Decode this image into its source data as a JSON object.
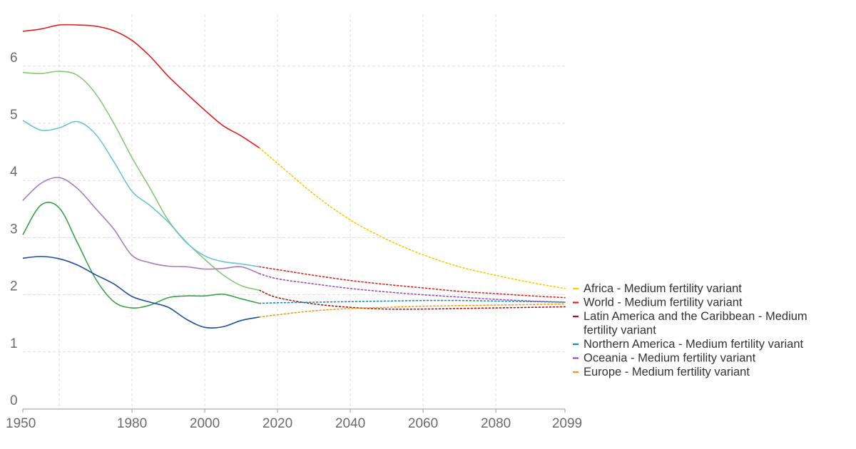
{
  "chart_data": {
    "type": "line",
    "title": "",
    "xlabel": "",
    "ylabel": "",
    "xlim": [
      1950,
      2099
    ],
    "ylim": [
      0,
      6.8
    ],
    "x_ticks": [
      1950,
      1980,
      2000,
      2020,
      2040,
      2060,
      2080,
      2099
    ],
    "x_tick_labels": [
      "1950",
      "1980",
      "2000",
      "2020",
      "2040",
      "2060",
      "2080",
      "2099"
    ],
    "y_ticks": [
      0,
      1,
      2,
      3,
      4,
      5,
      6
    ],
    "y_tick_labels": [
      "0",
      "1",
      "2",
      "3",
      "4",
      "5",
      "6"
    ],
    "grid": true,
    "legend_position": "right",
    "legend": [
      {
        "label": "Africa - Medium fertility variant",
        "color": "#ffc800"
      },
      {
        "label": "World - Medium fertility variant",
        "color": "#e02020"
      },
      {
        "label_lines": [
          "Latin America and the Caribbean - Medium",
          "fertility variant"
        ],
        "color": "#b01010"
      },
      {
        "label": "Northern America - Medium fertility variant",
        "color": "#1a8ab0"
      },
      {
        "label": "Oceania - Medium fertility variant",
        "color": "#9b4cb8"
      },
      {
        "label": "Europe - Medium fertility variant",
        "color": "#f39c12"
      }
    ],
    "series": [
      {
        "legend_index": 0,
        "historical_color": "#e02020",
        "projection_color": "#ffc800",
        "historical": [
          [
            1950,
            6.61
          ],
          [
            1955,
            6.65
          ],
          [
            1960,
            6.72
          ],
          [
            1965,
            6.72
          ],
          [
            1970,
            6.7
          ],
          [
            1975,
            6.62
          ],
          [
            1980,
            6.45
          ],
          [
            1985,
            6.17
          ],
          [
            1990,
            5.82
          ],
          [
            1995,
            5.52
          ],
          [
            2000,
            5.23
          ],
          [
            2005,
            4.96
          ],
          [
            2010,
            4.78
          ],
          [
            2015,
            4.57
          ]
        ],
        "projection": [
          [
            2015,
            4.57
          ],
          [
            2020,
            4.3
          ],
          [
            2030,
            3.76
          ],
          [
            2040,
            3.31
          ],
          [
            2050,
            2.97
          ],
          [
            2060,
            2.7
          ],
          [
            2070,
            2.49
          ],
          [
            2080,
            2.34
          ],
          [
            2090,
            2.21
          ],
          [
            2099,
            2.11
          ]
        ]
      },
      {
        "legend_index": 2,
        "historical_color": "#85c878",
        "projection_color": "#b01010",
        "historical": [
          [
            1950,
            5.89
          ],
          [
            1955,
            5.87
          ],
          [
            1960,
            5.91
          ],
          [
            1965,
            5.84
          ],
          [
            1970,
            5.52
          ],
          [
            1975,
            5.0
          ],
          [
            1980,
            4.4
          ],
          [
            1985,
            3.86
          ],
          [
            1990,
            3.3
          ],
          [
            1995,
            2.92
          ],
          [
            2000,
            2.62
          ],
          [
            2005,
            2.35
          ],
          [
            2010,
            2.16
          ],
          [
            2015,
            2.08
          ]
        ],
        "projection": [
          [
            2015,
            2.08
          ],
          [
            2020,
            1.95
          ],
          [
            2030,
            1.84
          ],
          [
            2040,
            1.78
          ],
          [
            2050,
            1.75
          ],
          [
            2060,
            1.75
          ],
          [
            2070,
            1.76
          ],
          [
            2080,
            1.77
          ],
          [
            2090,
            1.78
          ],
          [
            2099,
            1.79
          ]
        ]
      },
      {
        "legend_index": 1,
        "historical_color": "#6cc3d5",
        "projection_color": "#e02020",
        "historical": [
          [
            1950,
            5.05
          ],
          [
            1955,
            4.88
          ],
          [
            1960,
            4.92
          ],
          [
            1965,
            5.03
          ],
          [
            1970,
            4.81
          ],
          [
            1975,
            4.33
          ],
          [
            1980,
            3.81
          ],
          [
            1985,
            3.56
          ],
          [
            1990,
            3.27
          ],
          [
            1995,
            2.91
          ],
          [
            2000,
            2.68
          ],
          [
            2005,
            2.58
          ],
          [
            2010,
            2.54
          ],
          [
            2015,
            2.49
          ]
        ],
        "projection": [
          [
            2015,
            2.49
          ],
          [
            2020,
            2.44
          ],
          [
            2030,
            2.34
          ],
          [
            2040,
            2.25
          ],
          [
            2050,
            2.18
          ],
          [
            2060,
            2.12
          ],
          [
            2070,
            2.06
          ],
          [
            2080,
            2.02
          ],
          [
            2090,
            1.98
          ],
          [
            2099,
            1.95
          ]
        ]
      },
      {
        "legend_index": 4,
        "historical_color": "#a97cc0",
        "projection_color": "#9b4cb8",
        "historical": [
          [
            1950,
            3.65
          ],
          [
            1955,
            3.95
          ],
          [
            1960,
            4.05
          ],
          [
            1965,
            3.86
          ],
          [
            1970,
            3.51
          ],
          [
            1975,
            3.15
          ],
          [
            1980,
            2.69
          ],
          [
            1985,
            2.56
          ],
          [
            1990,
            2.5
          ],
          [
            1995,
            2.49
          ],
          [
            2000,
            2.45
          ],
          [
            2005,
            2.46
          ],
          [
            2010,
            2.49
          ],
          [
            2015,
            2.37
          ]
        ],
        "projection": [
          [
            2015,
            2.37
          ],
          [
            2020,
            2.28
          ],
          [
            2030,
            2.19
          ],
          [
            2040,
            2.11
          ],
          [
            2050,
            2.05
          ],
          [
            2060,
            2.0
          ],
          [
            2070,
            1.96
          ],
          [
            2080,
            1.92
          ],
          [
            2090,
            1.89
          ],
          [
            2099,
            1.87
          ]
        ]
      },
      {
        "legend_index": 3,
        "historical_color": "#3aa24a",
        "projection_color": "#1a8ab0",
        "historical": [
          [
            1950,
            3.05
          ],
          [
            1955,
            3.57
          ],
          [
            1960,
            3.52
          ],
          [
            1965,
            2.91
          ],
          [
            1970,
            2.28
          ],
          [
            1975,
            1.88
          ],
          [
            1980,
            1.77
          ],
          [
            1985,
            1.82
          ],
          [
            1990,
            1.95
          ],
          [
            1995,
            1.98
          ],
          [
            2000,
            1.98
          ],
          [
            2005,
            2.01
          ],
          [
            2010,
            1.93
          ],
          [
            2015,
            1.85
          ]
        ],
        "projection": [
          [
            2015,
            1.85
          ],
          [
            2020,
            1.86
          ],
          [
            2030,
            1.87
          ],
          [
            2040,
            1.88
          ],
          [
            2050,
            1.89
          ],
          [
            2060,
            1.9
          ],
          [
            2070,
            1.9
          ],
          [
            2080,
            1.89
          ],
          [
            2090,
            1.88
          ],
          [
            2099,
            1.87
          ]
        ]
      },
      {
        "legend_index": 5,
        "historical_color": "#1f4e9a",
        "projection_color": "#f39c12",
        "historical": [
          [
            1950,
            2.64
          ],
          [
            1955,
            2.67
          ],
          [
            1960,
            2.63
          ],
          [
            1965,
            2.52
          ],
          [
            1970,
            2.35
          ],
          [
            1975,
            2.19
          ],
          [
            1980,
            1.97
          ],
          [
            1985,
            1.87
          ],
          [
            1990,
            1.78
          ],
          [
            1995,
            1.57
          ],
          [
            2000,
            1.43
          ],
          [
            2005,
            1.44
          ],
          [
            2010,
            1.55
          ],
          [
            2015,
            1.61
          ]
        ],
        "projection": [
          [
            2015,
            1.61
          ],
          [
            2020,
            1.65
          ],
          [
            2030,
            1.72
          ],
          [
            2040,
            1.76
          ],
          [
            2050,
            1.78
          ],
          [
            2060,
            1.8
          ],
          [
            2070,
            1.81
          ],
          [
            2080,
            1.82
          ],
          [
            2090,
            1.83
          ],
          [
            2099,
            1.84
          ]
        ]
      }
    ]
  }
}
